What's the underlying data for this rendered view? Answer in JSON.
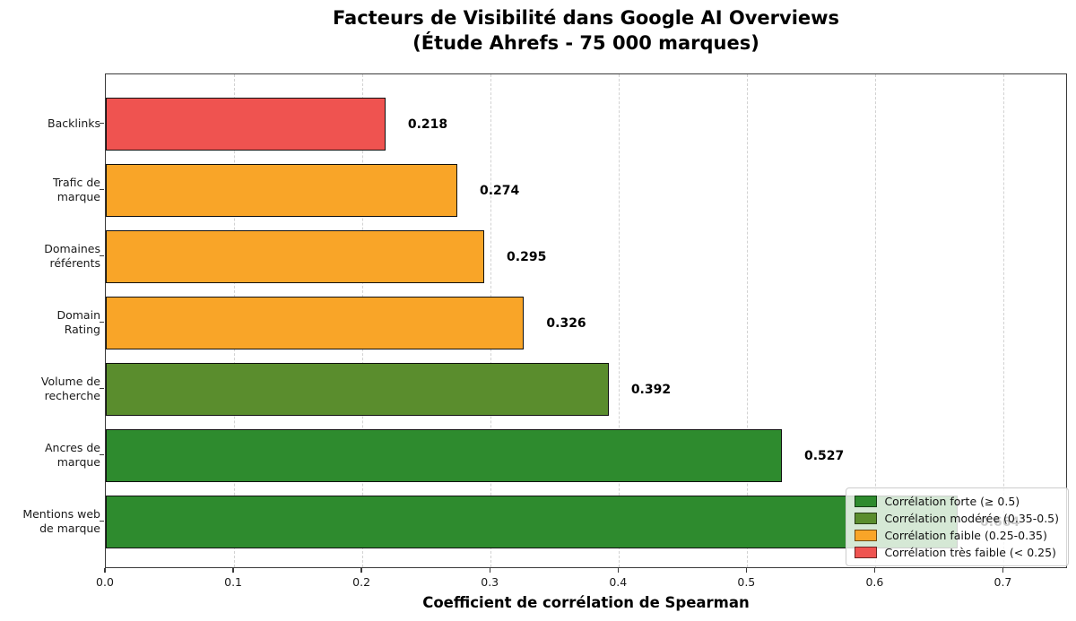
{
  "title": {
    "line1": "Facteurs de Visibilité dans Google AI Overviews",
    "line2": "(Étude Ahrefs - 75 000 marques)"
  },
  "chart_data": {
    "type": "bar",
    "orientation": "horizontal",
    "title": "Facteurs de Visibilité dans Google AI Overviews (Étude Ahrefs - 75 000 marques)",
    "xlabel": "Coefficient de corrélation de Spearman",
    "ylabel": "",
    "categories": [
      "Backlinks",
      "Trafic de marque",
      "Domaines référents",
      "Domain Rating",
      "Volume de recherche",
      "Ancres de marque",
      "Mentions web de marque"
    ],
    "category_lines": [
      [
        "Backlinks"
      ],
      [
        "Trafic de",
        "marque"
      ],
      [
        "Domaines",
        "référents"
      ],
      [
        "Domain",
        "Rating"
      ],
      [
        "Volume de",
        "recherche"
      ],
      [
        "Ancres de",
        "marque"
      ],
      [
        "Mentions web",
        "de marque"
      ]
    ],
    "values": [
      0.218,
      0.274,
      0.295,
      0.326,
      0.392,
      0.527,
      0.664
    ],
    "bar_colors": [
      "#ef5350",
      "#f9a528",
      "#f9a528",
      "#f9a528",
      "#5a8d2d",
      "#2e8b2e",
      "#2e8b2e"
    ],
    "xlim": [
      0,
      0.75
    ],
    "xtick_values": [
      0.0,
      0.1,
      0.2,
      0.3,
      0.4,
      0.5,
      0.6,
      0.7
    ],
    "xtick_labels": [
      "0.0",
      "0.1",
      "0.2",
      "0.3",
      "0.4",
      "0.5",
      "0.6",
      "0.7"
    ],
    "grid": "vertical-dashed",
    "legend": {
      "position": "lower-right",
      "items": [
        {
          "label": "Corrélation forte (≥ 0.5)",
          "color": "#2e8b2e"
        },
        {
          "label": "Corrélation modérée (0.35-0.5)",
          "color": "#5a8d2d"
        },
        {
          "label": "Corrélation faible (0.25-0.35)",
          "color": "#f9a528"
        },
        {
          "label": "Corrélation très faible (< 0.25)",
          "color": "#ef5350"
        }
      ]
    }
  }
}
